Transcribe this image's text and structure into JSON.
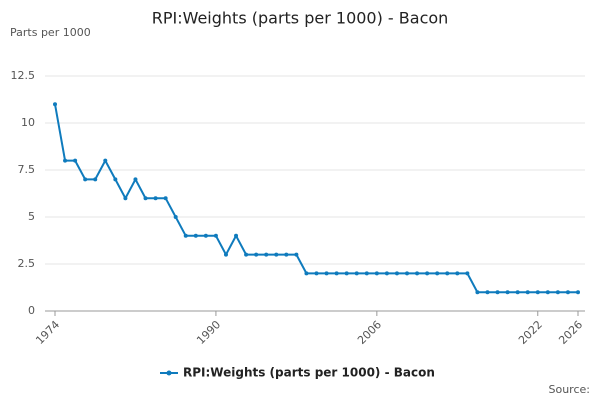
{
  "chart_data": {
    "type": "line",
    "title": "RPI:Weights (parts per 1000) - Bacon",
    "y_label": "Parts per 1000",
    "source": "Source:",
    "x": [
      1974,
      1975,
      1976,
      1977,
      1978,
      1979,
      1980,
      1981,
      1982,
      1983,
      1984,
      1985,
      1986,
      1987,
      1988,
      1989,
      1990,
      1991,
      1992,
      1993,
      1994,
      1995,
      1996,
      1997,
      1998,
      1999,
      2000,
      2001,
      2002,
      2003,
      2004,
      2005,
      2006,
      2007,
      2008,
      2009,
      2010,
      2011,
      2012,
      2013,
      2014,
      2015,
      2016,
      2017,
      2018,
      2019,
      2020,
      2021,
      2022,
      2023,
      2024,
      2025,
      2026
    ],
    "series": [
      {
        "name": "RPI:Weights (parts per 1000) - Bacon",
        "color": "#0f7bbd",
        "values": [
          11,
          8,
          8,
          7,
          7,
          8,
          7,
          6,
          7,
          6,
          6,
          6,
          5,
          4,
          4,
          4,
          4,
          3,
          4,
          3,
          3,
          3,
          3,
          3,
          3,
          2,
          2,
          2,
          2,
          2,
          2,
          2,
          2,
          2,
          2,
          2,
          2,
          2,
          2,
          2,
          2,
          2,
          1,
          1,
          1,
          1,
          1,
          1,
          1,
          1,
          1,
          1,
          1
        ]
      }
    ],
    "xlim": [
      1974,
      2026
    ],
    "xticks": [
      1974,
      1990,
      2006,
      2022,
      2026
    ],
    "ylim": [
      0,
      12.5
    ],
    "yticks": [
      0,
      2.5,
      5,
      7.5,
      10,
      12.5
    ],
    "grid": true
  }
}
